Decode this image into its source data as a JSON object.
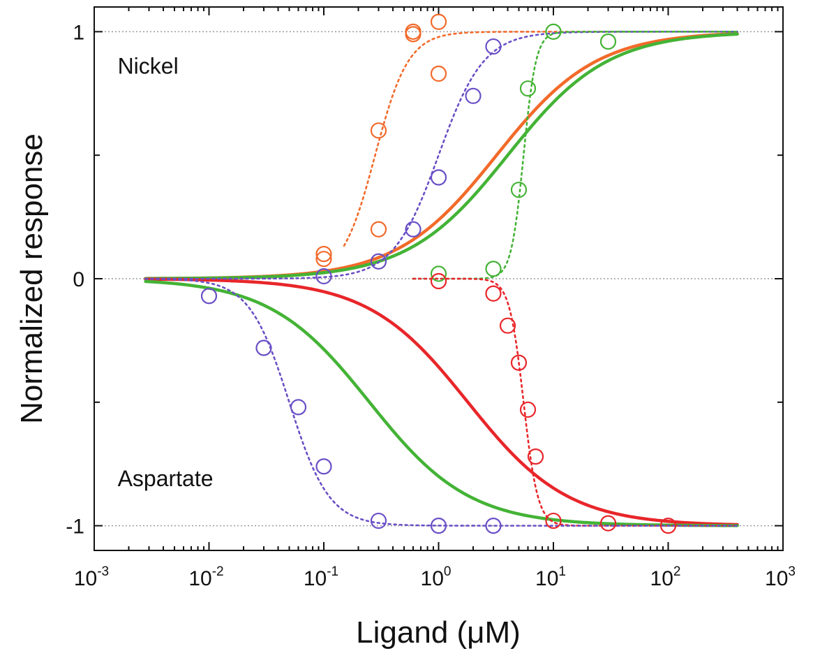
{
  "chart_data": {
    "type": "line",
    "xlabel": "Ligand (μM)",
    "ylabel": "Normalized response",
    "x_scale": "log",
    "xlim": [
      0.001,
      1000
    ],
    "ylim": [
      -1.1,
      1.1
    ],
    "x_ticks": [
      {
        "base": "10",
        "exp": "-3",
        "value": 0.001
      },
      {
        "base": "10",
        "exp": "-2",
        "value": 0.01
      },
      {
        "base": "10",
        "exp": "-1",
        "value": 0.1
      },
      {
        "base": "10",
        "exp": "0",
        "value": 1
      },
      {
        "base": "10",
        "exp": "1",
        "value": 10
      },
      {
        "base": "10",
        "exp": "2",
        "value": 100
      },
      {
        "base": "10",
        "exp": "3",
        "value": 1000
      }
    ],
    "y_ticks": [
      {
        "label": "1",
        "value": 1
      },
      {
        "label": "0",
        "value": 0
      },
      {
        "label": "-1",
        "value": -1
      }
    ],
    "reference_lines": [
      1,
      0,
      -1
    ],
    "annotations": [
      {
        "text": "Nickel",
        "x": 0.0016,
        "y": 0.83
      },
      {
        "text": "Aspartate",
        "x": 0.0016,
        "y": -0.84
      }
    ],
    "colors": {
      "orange": "#f26a2a",
      "purple": "#6a4fc6",
      "green": "#44b336",
      "red": "#e8262a",
      "reference": "#9a9a9a"
    },
    "series": [
      {
        "color": "orange",
        "style": "solid",
        "model": "hill",
        "ec50": 3.2,
        "n": 1.0,
        "amplitude": 1,
        "x_range": [
          0.0028,
          400
        ]
      },
      {
        "color": "green",
        "style": "solid",
        "model": "hill",
        "ec50": 4.0,
        "n": 1.0,
        "amplitude": 1,
        "x_range": [
          0.0028,
          400
        ]
      },
      {
        "color": "red",
        "style": "solid",
        "model": "hill",
        "ec50": 1.8,
        "n": 1.0,
        "amplitude": -1,
        "x_range": [
          0.0028,
          400
        ]
      },
      {
        "color": "green",
        "style": "solid",
        "model": "hill",
        "ec50": 0.25,
        "n": 1.0,
        "amplitude": -1,
        "x_range": [
          0.0028,
          400
        ]
      },
      {
        "color": "orange",
        "style": "dotted",
        "model": "hill",
        "ec50": 0.28,
        "n": 3.0,
        "amplitude": 1,
        "x_range": [
          0.15,
          400
        ]
      },
      {
        "color": "purple",
        "style": "dotted",
        "model": "hill",
        "ec50": 1.0,
        "n": 2.2,
        "amplitude": 1,
        "x_range": [
          0.0028,
          400
        ]
      },
      {
        "color": "green",
        "style": "dotted",
        "model": "hill",
        "ec50": 5.5,
        "n": 8.0,
        "amplitude": 1,
        "x_range": [
          0.6,
          400
        ]
      },
      {
        "color": "red",
        "style": "dotted",
        "model": "hill",
        "ec50": 5.5,
        "n": 7.0,
        "amplitude": -1,
        "x_range": [
          0.6,
          400
        ]
      },
      {
        "color": "purple",
        "style": "dotted",
        "model": "hill",
        "ec50": 0.05,
        "n": 2.5,
        "amplitude": -1,
        "x_range": [
          0.0028,
          400
        ]
      },
      {
        "color": "orange",
        "style": "markers",
        "points": [
          [
            0.1,
            0.1
          ],
          [
            0.1,
            0.08
          ],
          [
            0.3,
            0.2
          ],
          [
            0.3,
            0.6
          ],
          [
            0.6,
            0.99
          ],
          [
            0.6,
            1.0
          ],
          [
            1.0,
            0.83
          ],
          [
            1.0,
            1.04
          ]
        ]
      },
      {
        "color": "purple",
        "style": "markers",
        "points": [
          [
            0.1,
            0.01
          ],
          [
            0.3,
            0.07
          ],
          [
            0.6,
            0.2
          ],
          [
            1.0,
            0.41
          ],
          [
            2.0,
            0.74
          ],
          [
            3.0,
            0.94
          ]
        ]
      },
      {
        "color": "green",
        "style": "markers",
        "points": [
          [
            1.0,
            0.02
          ],
          [
            3.0,
            0.04
          ],
          [
            5.0,
            0.36
          ],
          [
            6.0,
            0.77
          ],
          [
            10.0,
            1.0
          ],
          [
            30.0,
            0.96
          ]
        ]
      },
      {
        "color": "red",
        "style": "markers",
        "points": [
          [
            1.0,
            -0.01
          ],
          [
            3.0,
            -0.06
          ],
          [
            4.0,
            -0.19
          ],
          [
            5.0,
            -0.34
          ],
          [
            6.0,
            -0.53
          ],
          [
            7.0,
            -0.72
          ],
          [
            10.0,
            -0.98
          ],
          [
            30.0,
            -0.99
          ],
          [
            100.0,
            -1.0
          ]
        ]
      },
      {
        "color": "purple",
        "style": "markers",
        "points": [
          [
            0.01,
            -0.07
          ],
          [
            0.03,
            -0.28
          ],
          [
            0.06,
            -0.52
          ],
          [
            0.1,
            -0.76
          ],
          [
            0.3,
            -0.98
          ],
          [
            1.0,
            -1.0
          ],
          [
            3.0,
            -1.0
          ]
        ]
      }
    ]
  }
}
